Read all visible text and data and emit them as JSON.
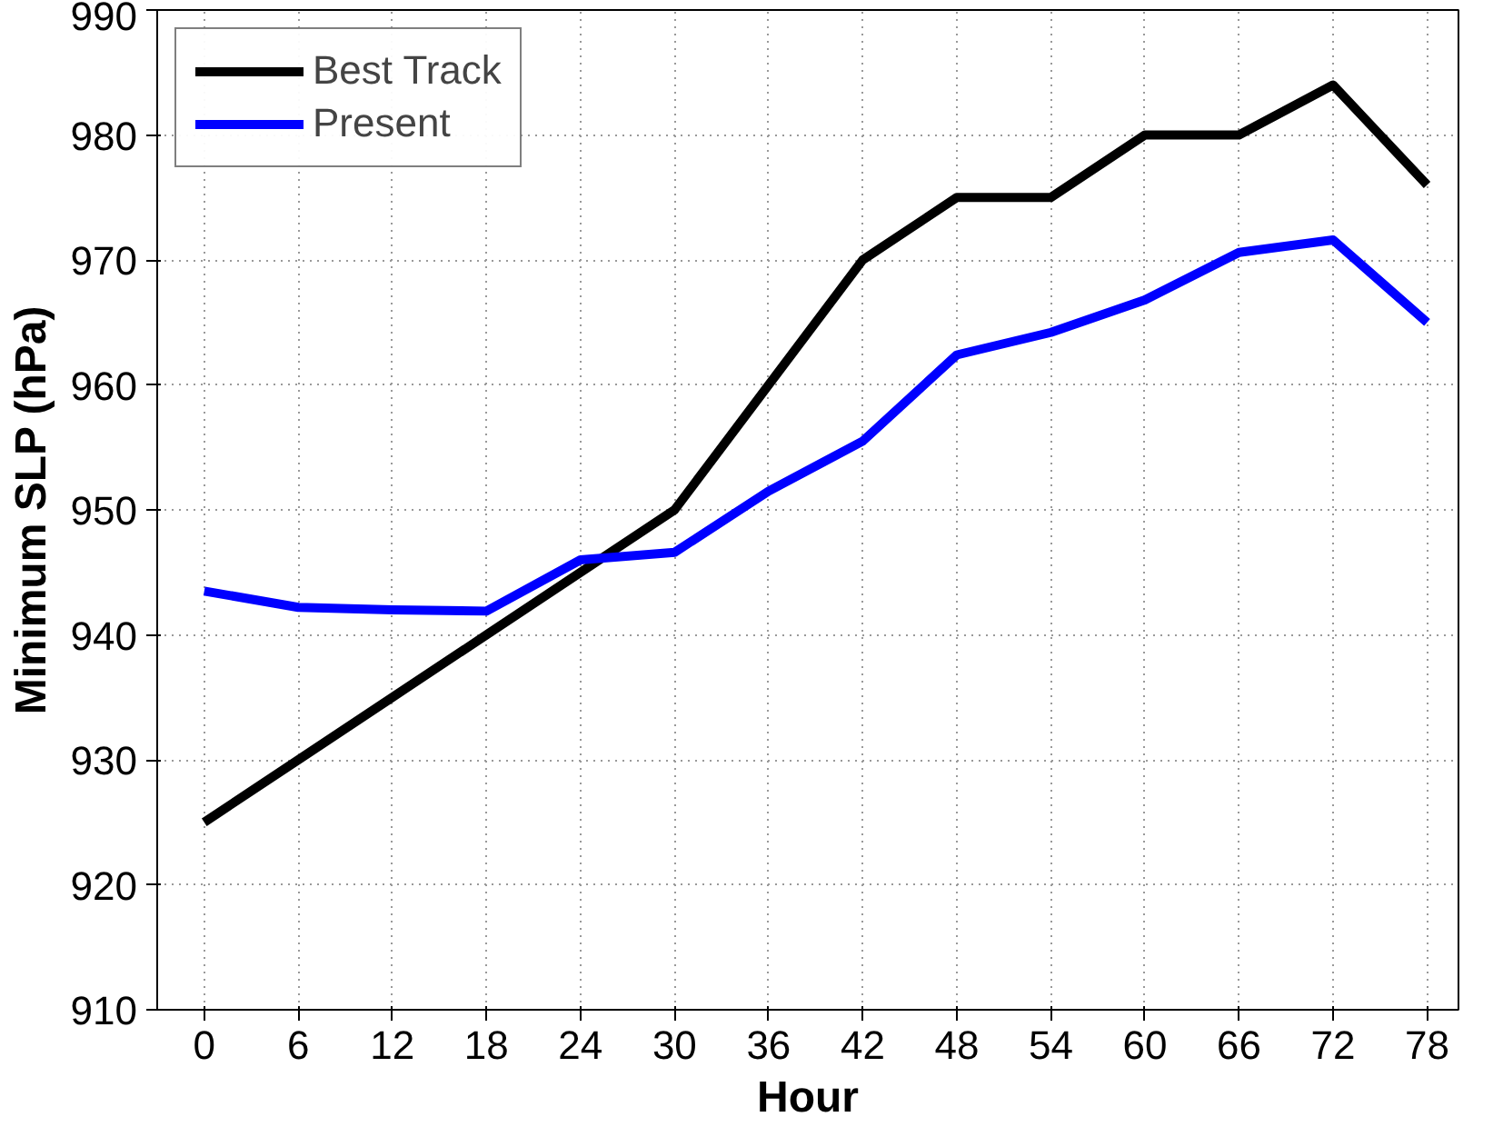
{
  "chart_data": {
    "type": "line",
    "xlabel": "Hour",
    "ylabel": "Minimum SLP (hPa)",
    "x": [
      0,
      6,
      12,
      18,
      24,
      30,
      36,
      42,
      48,
      54,
      60,
      66,
      72,
      78
    ],
    "series": [
      {
        "name": "Best Track",
        "color": "#000000",
        "values": [
          925,
          930,
          935,
          940,
          945,
          950,
          960,
          970,
          975,
          975,
          980,
          980,
          984,
          976
        ]
      },
      {
        "name": "Present",
        "color": "#0000ff",
        "values": [
          943.5,
          942.2,
          942,
          941.9,
          946,
          946.6,
          951.5,
          955.5,
          962.4,
          964.2,
          966.8,
          970.6,
          971.6,
          965
        ]
      }
    ],
    "xlim": [
      -3,
      80
    ],
    "xticks": [
      0,
      6,
      12,
      18,
      24,
      30,
      36,
      42,
      48,
      54,
      60,
      66,
      72,
      78
    ],
    "ylim": [
      910,
      990
    ],
    "yticks": [
      910,
      920,
      930,
      940,
      950,
      960,
      970,
      980,
      990
    ],
    "grid": true,
    "legend": "top left",
    "line_style": "solid"
  }
}
